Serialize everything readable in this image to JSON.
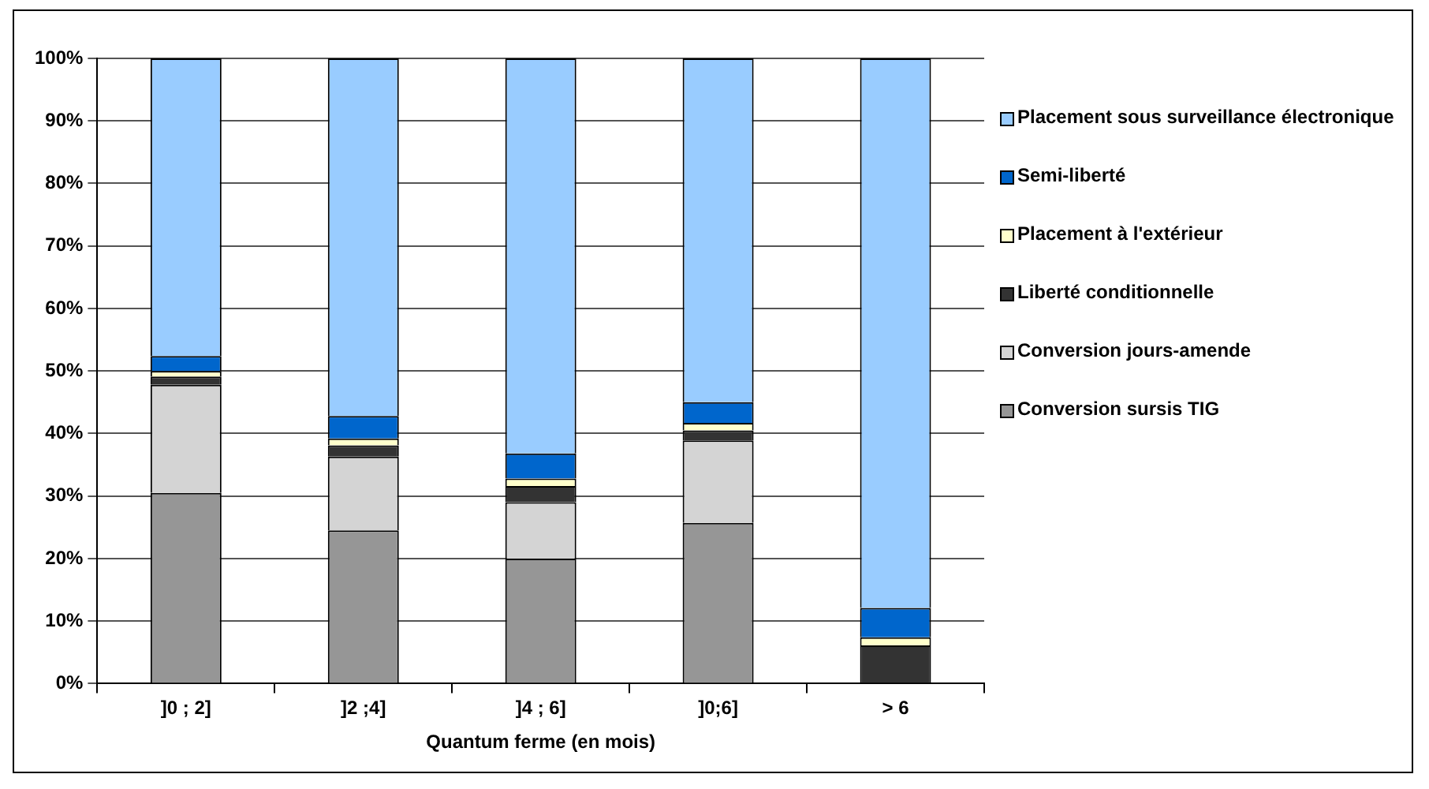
{
  "chart_data": {
    "type": "bar",
    "stacked": true,
    "xlabel": "Quantum ferme (en mois)",
    "categories": [
      "]0 ; 2]",
      "]2 ;4]",
      "]4 ; 6]",
      "]0;6]",
      "> 6"
    ],
    "series": [
      {
        "name": "Conversion sursis TIG",
        "color": "#969696",
        "values": [
          30.5,
          24.5,
          20,
          25.7,
          0
        ]
      },
      {
        "name": "Conversion jours-amende",
        "color": "#d4d4d4",
        "values": [
          17.3,
          11.8,
          9,
          13.2,
          0
        ]
      },
      {
        "name": "Liberté conditionnelle",
        "color": "#333333",
        "values": [
          1.3,
          1.8,
          2.6,
          1.6,
          6.1
        ]
      },
      {
        "name": "Placement à l'extérieur",
        "color": "#ffffcc",
        "values": [
          0.9,
          1.1,
          1.2,
          1.2,
          1.3
        ]
      },
      {
        "name": "Semi-liberté",
        "color": "#0066cc",
        "values": [
          2.4,
          3.6,
          4,
          3.3,
          4.7
        ]
      },
      {
        "name": "Placement sous surveillance électronique",
        "color": "#99ccff",
        "values": [
          47.6,
          57.2,
          63.2,
          55,
          87.9
        ]
      }
    ],
    "ylim": [
      0,
      100
    ],
    "yticks": [
      {
        "value": 0,
        "label": "0%"
      },
      {
        "value": 10,
        "label": "10%"
      },
      {
        "value": 20,
        "label": "20%"
      },
      {
        "value": 30,
        "label": "30%"
      },
      {
        "value": 40,
        "label": "40%"
      },
      {
        "value": 50,
        "label": "50%"
      },
      {
        "value": 60,
        "label": "60%"
      },
      {
        "value": 70,
        "label": "70%"
      },
      {
        "value": 80,
        "label": "80%"
      },
      {
        "value": 90,
        "label": "90%"
      },
      {
        "value": 100,
        "label": "100%"
      }
    ],
    "grid": "y",
    "legend": "right"
  }
}
